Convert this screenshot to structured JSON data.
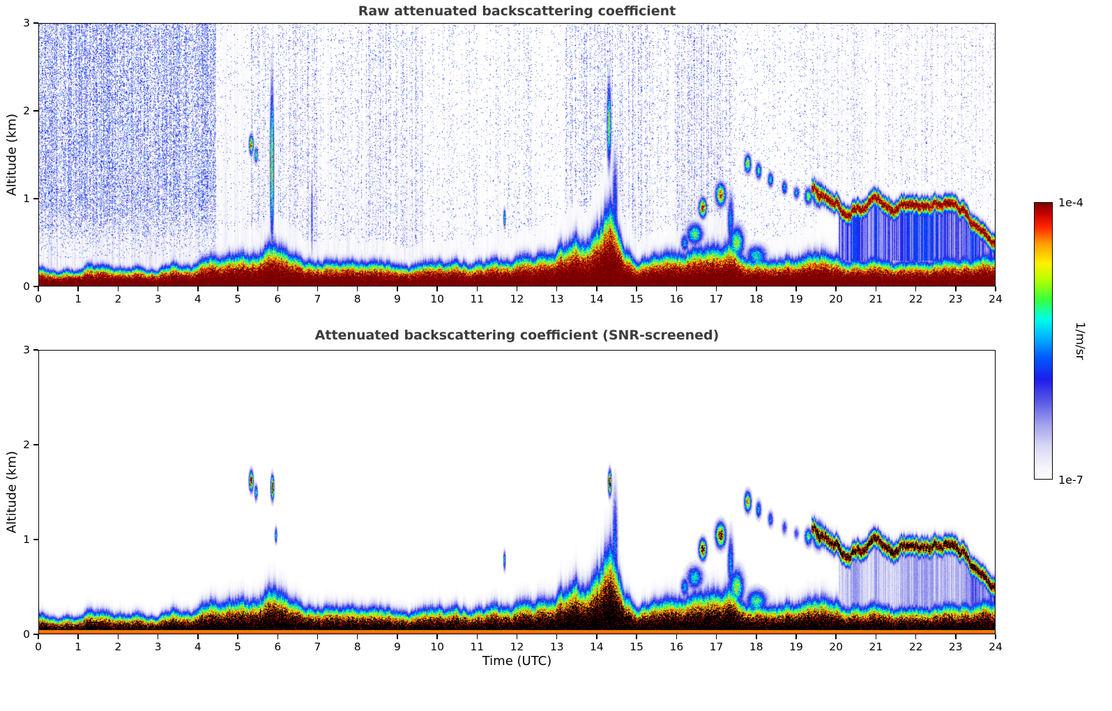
{
  "chart_data": {
    "type": "heatmap",
    "panels": [
      {
        "id": "raw",
        "title": "Raw attenuated backscattering coefficient"
      },
      {
        "id": "screened",
        "title": "Attenuated backscattering coefficient (SNR-screened)"
      }
    ],
    "x": {
      "label": "Time (UTC)",
      "min": 0,
      "max": 24,
      "ticks": [
        0,
        1,
        2,
        3,
        4,
        5,
        6,
        7,
        8,
        9,
        10,
        11,
        12,
        13,
        14,
        15,
        16,
        17,
        18,
        19,
        20,
        21,
        22,
        23,
        24
      ]
    },
    "y": {
      "label": "Altitude (km)",
      "min": 0,
      "max": 3,
      "ticks": [
        0,
        1,
        2,
        3
      ]
    },
    "colorbar": {
      "max_label": "1e-4",
      "min_label": "1e-7",
      "unit_label": "1/m/sr",
      "scale": "log",
      "vmin": 1e-07,
      "vmax": 0.0001
    },
    "colormap_stops": [
      [
        0.0,
        255,
        255,
        255
      ],
      [
        0.05,
        242,
        242,
        250
      ],
      [
        0.12,
        216,
        216,
        244
      ],
      [
        0.2,
        160,
        160,
        238
      ],
      [
        0.28,
        90,
        90,
        230
      ],
      [
        0.36,
        30,
        30,
        235
      ],
      [
        0.44,
        0,
        90,
        255
      ],
      [
        0.52,
        0,
        190,
        255
      ],
      [
        0.58,
        0,
        255,
        230
      ],
      [
        0.65,
        60,
        255,
        60
      ],
      [
        0.72,
        180,
        255,
        0
      ],
      [
        0.78,
        255,
        240,
        0
      ],
      [
        0.85,
        255,
        160,
        0
      ],
      [
        0.91,
        255,
        40,
        0
      ],
      [
        0.96,
        200,
        0,
        0
      ],
      [
        1.0,
        120,
        0,
        0
      ]
    ],
    "features": {
      "boundary_layer_top_km": [
        [
          0,
          0.27
        ],
        [
          1,
          0.25
        ],
        [
          1.3,
          0.3
        ],
        [
          2,
          0.27
        ],
        [
          3,
          0.26
        ],
        [
          3.3,
          0.32
        ],
        [
          3.6,
          0.27
        ],
        [
          4,
          0.3
        ],
        [
          4.3,
          0.45
        ],
        [
          4.7,
          0.42
        ],
        [
          5,
          0.5
        ],
        [
          5.3,
          0.45
        ],
        [
          5.6,
          0.55
        ],
        [
          5.9,
          0.6
        ],
        [
          6.1,
          0.5
        ],
        [
          6.4,
          0.42
        ],
        [
          6.8,
          0.35
        ],
        [
          7,
          0.33
        ],
        [
          8,
          0.33
        ],
        [
          9,
          0.32
        ],
        [
          10,
          0.33
        ],
        [
          10.5,
          0.36
        ],
        [
          11,
          0.35
        ],
        [
          11.5,
          0.38
        ],
        [
          12,
          0.38
        ],
        [
          12.5,
          0.42
        ],
        [
          13,
          0.5
        ],
        [
          13.4,
          0.62
        ],
        [
          13.7,
          0.58
        ],
        [
          14,
          0.78
        ],
        [
          14.2,
          1.0
        ],
        [
          14.35,
          1.1
        ],
        [
          14.5,
          0.8
        ],
        [
          14.7,
          0.45
        ],
        [
          15,
          0.38
        ],
        [
          15.5,
          0.4
        ],
        [
          16,
          0.45
        ],
        [
          16.3,
          0.55
        ],
        [
          16.6,
          0.6
        ],
        [
          17,
          0.55
        ],
        [
          17.3,
          0.6
        ],
        [
          17.6,
          0.5
        ],
        [
          18,
          0.45
        ],
        [
          18.5,
          0.4
        ],
        [
          19,
          0.38
        ],
        [
          19.3,
          0.42
        ],
        [
          19.6,
          0.5
        ],
        [
          20,
          0.42
        ],
        [
          20.5,
          0.38
        ],
        [
          21,
          0.36
        ],
        [
          21.5,
          0.38
        ],
        [
          22,
          0.35
        ],
        [
          23,
          0.38
        ],
        [
          23.5,
          0.42
        ],
        [
          24,
          0.45
        ]
      ],
      "elevated_cloud_base_km": [
        [
          19.4,
          1.1
        ],
        [
          19.7,
          1.02
        ],
        [
          20,
          0.93
        ],
        [
          20.3,
          0.86
        ],
        [
          20.7,
          0.9
        ],
        [
          21,
          0.96
        ],
        [
          21.3,
          0.9
        ],
        [
          21.7,
          0.96
        ],
        [
          22,
          0.9
        ],
        [
          22.3,
          0.94
        ],
        [
          22.7,
          0.9
        ],
        [
          23,
          0.92
        ],
        [
          23.2,
          0.85
        ],
        [
          23.5,
          0.7
        ],
        [
          23.8,
          0.55
        ],
        [
          24,
          0.5
        ]
      ],
      "cloud_events": [
        [
          5.33,
          1.62,
          0.05,
          0.1,
          0.72,
          0.8
        ],
        [
          5.45,
          1.5,
          0.04,
          0.08,
          0.55,
          0.45
        ],
        [
          5.85,
          1.4,
          0.045,
          0.85,
          0.6,
          0.0
        ],
        [
          5.86,
          1.55,
          0.04,
          0.12,
          0.0,
          0.8
        ],
        [
          5.95,
          1.05,
          0.03,
          0.08,
          0.0,
          0.45
        ],
        [
          6.85,
          0.8,
          0.025,
          0.45,
          0.28,
          0.0
        ],
        [
          11.68,
          0.78,
          0.03,
          0.1,
          0.45,
          0.4
        ],
        [
          14.3,
          1.85,
          0.05,
          0.45,
          0.55,
          0.0
        ],
        [
          14.32,
          1.6,
          0.04,
          0.12,
          0.0,
          0.85
        ],
        [
          14.45,
          0.95,
          0.07,
          0.55,
          0.32,
          0.35
        ],
        [
          16.2,
          0.5,
          0.1,
          0.1,
          0.4,
          0.4
        ],
        [
          16.45,
          0.6,
          0.2,
          0.12,
          0.5,
          0.45
        ],
        [
          16.65,
          0.9,
          0.09,
          0.1,
          0.8,
          0.85
        ],
        [
          17.1,
          1.05,
          0.12,
          0.12,
          0.7,
          0.8
        ],
        [
          17.35,
          0.75,
          0.08,
          0.3,
          0.38,
          0.38
        ],
        [
          17.5,
          0.5,
          0.18,
          0.18,
          0.55,
          0.55
        ],
        [
          17.78,
          1.4,
          0.08,
          0.1,
          0.6,
          0.7
        ],
        [
          18.0,
          0.35,
          0.25,
          0.12,
          0.45,
          0.5
        ],
        [
          18.05,
          1.32,
          0.07,
          0.09,
          0.48,
          0.4
        ],
        [
          18.35,
          1.22,
          0.07,
          0.08,
          0.45,
          0.35
        ],
        [
          18.7,
          1.13,
          0.07,
          0.08,
          0.4,
          0.28
        ],
        [
          19.0,
          1.07,
          0.07,
          0.07,
          0.4,
          0.25
        ],
        [
          19.3,
          1.03,
          0.09,
          0.09,
          0.55,
          0.5
        ],
        [
          19.55,
          1.05,
          0.12,
          0.12,
          0.75,
          0.8
        ]
      ],
      "noise_regions_raw": [
        [
          0,
          4.45,
          0.42,
          2
        ],
        [
          4.45,
          5.3,
          0.05,
          0
        ],
        [
          5.3,
          7.0,
          0.17,
          0
        ],
        [
          7.0,
          8.0,
          0.1,
          0
        ],
        [
          8.0,
          9.7,
          0.2,
          0
        ],
        [
          9.7,
          11.0,
          0.07,
          0
        ],
        [
          11.0,
          12.4,
          0.11,
          0
        ],
        [
          12.4,
          13.2,
          0.05,
          0
        ],
        [
          13.2,
          15.35,
          0.22,
          0
        ],
        [
          15.35,
          15.95,
          0.08,
          0
        ],
        [
          15.95,
          17.4,
          0.24,
          0
        ],
        [
          17.4,
          19.5,
          0.07,
          0
        ],
        [
          19.5,
          24.01,
          0.17,
          1
        ]
      ],
      "background_wash_raw": [
        [
          0,
          4.4,
          0.085,
          1.25
        ],
        [
          4.4,
          5.3,
          0.05,
          2.6
        ],
        [
          5.3,
          9.7,
          0.05,
          1.8
        ],
        [
          9.7,
          13.2,
          0.033,
          1.4
        ],
        [
          13.2,
          15.35,
          0.05,
          1.8
        ],
        [
          15.35,
          15.95,
          0.03,
          1.3
        ],
        [
          15.95,
          17.4,
          0.055,
          1.9
        ],
        [
          17.4,
          19.5,
          0.027,
          1.2
        ],
        [
          19.5,
          21.5,
          0.02,
          1.0
        ]
      ]
    }
  }
}
